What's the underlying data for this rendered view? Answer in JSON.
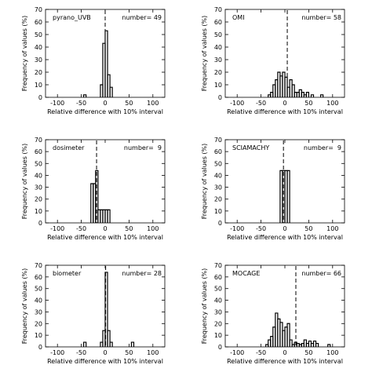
{
  "chart_data": [
    {
      "type": "bar",
      "panel_label": "pyrano_UVB",
      "count_text": "number= 49",
      "xlabel": "Relative difference with 10% interval",
      "ylabel": "Frequency of values (%)",
      "xlim": [
        -125,
        125
      ],
      "ylim": [
        0,
        70
      ],
      "xticks": [
        -100,
        -50,
        0,
        50,
        100
      ],
      "yticks": [
        0,
        10,
        20,
        30,
        40,
        50,
        60,
        70
      ],
      "bin_width": 5,
      "bins": [
        {
          "x": -45,
          "value": 2
        },
        {
          "x": -40,
          "value": 0
        },
        {
          "x": -35,
          "value": 0
        },
        {
          "x": -30,
          "value": 0
        },
        {
          "x": -25,
          "value": 0
        },
        {
          "x": -20,
          "value": 0
        },
        {
          "x": -15,
          "value": 0
        },
        {
          "x": -10,
          "value": 10
        },
        {
          "x": -5,
          "value": 43
        },
        {
          "x": 0,
          "value": 53
        },
        {
          "x": 5,
          "value": 18
        },
        {
          "x": 10,
          "value": 8
        },
        {
          "x": 15,
          "value": 0
        }
      ],
      "dashed_line_x": 0,
      "grid": false
    },
    {
      "type": "bar",
      "panel_label": "OMI",
      "count_text": "number= 58",
      "xlabel": "Relative difference with 10% interval",
      "ylabel": "Frequency of values (%)",
      "xlim": [
        -125,
        125
      ],
      "ylim": [
        0,
        70
      ],
      "xticks": [
        -100,
        -50,
        0,
        50,
        100
      ],
      "yticks": [
        0,
        10,
        20,
        30,
        40,
        50,
        60,
        70
      ],
      "bin_width": 5,
      "bins": [
        {
          "x": -35,
          "value": 2
        },
        {
          "x": -30,
          "value": 4
        },
        {
          "x": -25,
          "value": 10
        },
        {
          "x": -20,
          "value": 14
        },
        {
          "x": -15,
          "value": 20
        },
        {
          "x": -10,
          "value": 17
        },
        {
          "x": -5,
          "value": 20
        },
        {
          "x": 0,
          "value": 16
        },
        {
          "x": 5,
          "value": 8
        },
        {
          "x": 10,
          "value": 14
        },
        {
          "x": 15,
          "value": 10
        },
        {
          "x": 20,
          "value": 4
        },
        {
          "x": 25,
          "value": 4
        },
        {
          "x": 30,
          "value": 6
        },
        {
          "x": 35,
          "value": 4
        },
        {
          "x": 40,
          "value": 2
        },
        {
          "x": 45,
          "value": 4
        },
        {
          "x": 50,
          "value": 0
        },
        {
          "x": 55,
          "value": 2
        },
        {
          "x": 60,
          "value": 0
        },
        {
          "x": 65,
          "value": 0
        },
        {
          "x": 70,
          "value": 0
        },
        {
          "x": 75,
          "value": 2
        },
        {
          "x": 80,
          "value": 0
        }
      ],
      "dashed_line_x": 5,
      "grid": false
    },
    {
      "type": "bar",
      "panel_label": "dosimeter",
      "count_text": "number=  9",
      "xlabel": "Relative difference with 10% interval",
      "ylabel": "Frequency of values (%)",
      "xlim": [
        -125,
        125
      ],
      "ylim": [
        0,
        70
      ],
      "xticks": [
        -100,
        -50,
        0,
        50,
        100
      ],
      "yticks": [
        0,
        10,
        20,
        30,
        40,
        50,
        60,
        70
      ],
      "bin_width": 5,
      "bins": [
        {
          "x": -30,
          "value": 33
        },
        {
          "x": -25,
          "value": 33
        },
        {
          "x": -20,
          "value": 44
        },
        {
          "x": -15,
          "value": 11
        },
        {
          "x": -10,
          "value": 11
        },
        {
          "x": -5,
          "value": 11
        },
        {
          "x": 0,
          "value": 11
        },
        {
          "x": 5,
          "value": 11
        }
      ],
      "dashed_line_x": -18,
      "grid": false
    },
    {
      "type": "bar",
      "panel_label": "SCIAMACHY",
      "count_text": "number=  9",
      "xlabel": "Relative difference with 10% interval",
      "ylabel": "Frequency of values (%)",
      "xlim": [
        -125,
        125
      ],
      "ylim": [
        0,
        70
      ],
      "xticks": [
        -100,
        -50,
        0,
        50,
        100
      ],
      "yticks": [
        0,
        10,
        20,
        30,
        40,
        50,
        60,
        70
      ],
      "bin_width": 5,
      "bins": [
        {
          "x": -10,
          "value": 44
        },
        {
          "x": -5,
          "value": 44
        },
        {
          "x": 0,
          "value": 44
        },
        {
          "x": 5,
          "value": 44
        }
      ],
      "dashed_line_x": -3,
      "grid": false
    },
    {
      "type": "bar",
      "panel_label": "biometer",
      "count_text": "number= 28",
      "xlabel": "Relative difference with 10% interval",
      "ylabel": "Frequency of values (%)",
      "xlim": [
        -125,
        125
      ],
      "ylim": [
        0,
        70
      ],
      "xticks": [
        -100,
        -50,
        0,
        50,
        100
      ],
      "yticks": [
        0,
        10,
        20,
        30,
        40,
        50,
        60,
        70
      ],
      "bin_width": 5,
      "bins": [
        {
          "x": -45,
          "value": 4
        },
        {
          "x": -40,
          "value": 0
        },
        {
          "x": -35,
          "value": 0
        },
        {
          "x": -30,
          "value": 0
        },
        {
          "x": -25,
          "value": 0
        },
        {
          "x": -20,
          "value": 0
        },
        {
          "x": -15,
          "value": 0
        },
        {
          "x": -10,
          "value": 4
        },
        {
          "x": -5,
          "value": 14
        },
        {
          "x": 0,
          "value": 64
        },
        {
          "x": 5,
          "value": 14
        },
        {
          "x": 10,
          "value": 4
        },
        {
          "x": 15,
          "value": 0
        },
        {
          "x": 20,
          "value": 0
        },
        {
          "x": 25,
          "value": 0
        },
        {
          "x": 30,
          "value": 0
        },
        {
          "x": 35,
          "value": 0
        },
        {
          "x": 40,
          "value": 0
        },
        {
          "x": 45,
          "value": 0
        },
        {
          "x": 50,
          "value": 0
        },
        {
          "x": 55,
          "value": 4
        },
        {
          "x": 60,
          "value": 0
        }
      ],
      "dashed_line_x": 1,
      "grid": false
    },
    {
      "type": "bar",
      "panel_label": "MOCAGE",
      "count_text": "number= 66",
      "xlabel": "Relative difference with 10% interval",
      "ylabel": "Frequency of values (%)",
      "xlim": [
        -125,
        125
      ],
      "ylim": [
        0,
        70
      ],
      "xticks": [
        -100,
        -50,
        0,
        50,
        100
      ],
      "yticks": [
        0,
        10,
        20,
        30,
        40,
        50,
        60,
        70
      ],
      "bin_width": 5,
      "bins": [
        {
          "x": -40,
          "value": 2
        },
        {
          "x": -35,
          "value": 6
        },
        {
          "x": -30,
          "value": 9
        },
        {
          "x": -25,
          "value": 17
        },
        {
          "x": -20,
          "value": 29
        },
        {
          "x": -15,
          "value": 24
        },
        {
          "x": -10,
          "value": 21
        },
        {
          "x": -5,
          "value": 14
        },
        {
          "x": 0,
          "value": 17
        },
        {
          "x": 5,
          "value": 20
        },
        {
          "x": 10,
          "value": 6
        },
        {
          "x": 15,
          "value": 2
        },
        {
          "x": 20,
          "value": 4
        },
        {
          "x": 25,
          "value": 3
        },
        {
          "x": 30,
          "value": 2
        },
        {
          "x": 35,
          "value": 3
        },
        {
          "x": 40,
          "value": 6
        },
        {
          "x": 45,
          "value": 3
        },
        {
          "x": 50,
          "value": 5
        },
        {
          "x": 55,
          "value": 3
        },
        {
          "x": 60,
          "value": 5
        },
        {
          "x": 65,
          "value": 3
        },
        {
          "x": 70,
          "value": 0
        },
        {
          "x": 75,
          "value": 0
        },
        {
          "x": 80,
          "value": 0
        },
        {
          "x": 85,
          "value": 0
        },
        {
          "x": 90,
          "value": 2
        },
        {
          "x": 95,
          "value": 0
        }
      ],
      "dashed_line_x": 23,
      "grid": false
    }
  ]
}
